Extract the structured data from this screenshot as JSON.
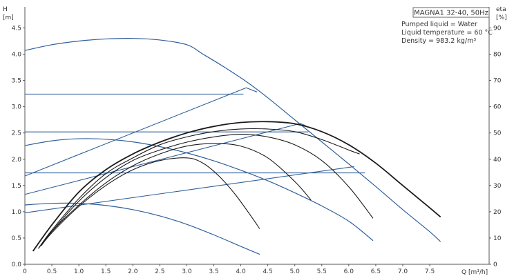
{
  "chart_data": {
    "type": "line",
    "title": "MAGNA1 32-40, 50Hz",
    "info_lines": [
      "Pumped liquid = Water",
      "Liquid temperature = 60 °C",
      "Density = 983.2 kg/m³"
    ],
    "xlabel": "Q [m³/h]",
    "ylabel_left": [
      "H",
      "[m]"
    ],
    "ylabel_right": [
      "eta",
      "[%]"
    ],
    "xlim": [
      0,
      8.6
    ],
    "ylim_left": [
      0,
      4.9
    ],
    "ylim_right": [
      0,
      98
    ],
    "x_ticks": [
      "0",
      "0.5",
      "1.0",
      "1.5",
      "2.0",
      "2.5",
      "3.0",
      "3.5",
      "4.0",
      "4.5",
      "5.0",
      "5.5",
      "6.0",
      "6.5",
      "7.0",
      "7.5"
    ],
    "y_ticks_left": [
      "0.0",
      "0.5",
      "1.0",
      "1.5",
      "2.0",
      "2.5",
      "3.0",
      "3.5",
      "4.0",
      "4.5"
    ],
    "y_ticks_right": [
      "0",
      "10",
      "20",
      "30",
      "40",
      "50",
      "60",
      "70",
      "80",
      "90"
    ],
    "grid": false,
    "colors": {
      "head": "#2f5f9a",
      "efficiency": "#1a1a1a",
      "axis": "#555555"
    },
    "head_curves": [
      {
        "x": [
          0,
          0.5,
          1.0,
          1.5,
          2.0,
          2.5,
          3.0,
          3.3,
          3.7,
          4.1,
          4.5,
          5.0,
          5.5,
          6.0,
          6.5,
          7.0,
          7.5,
          7.7
        ],
        "y": [
          4.07,
          4.18,
          4.25,
          4.29,
          4.3,
          4.27,
          4.18,
          4.0,
          3.75,
          3.48,
          3.17,
          2.75,
          2.33,
          1.91,
          1.48,
          1.04,
          0.62,
          0.43
        ]
      },
      {
        "x": [
          0,
          0.5,
          1.0,
          1.5,
          2.0,
          2.5,
          3.0,
          3.5,
          4.0,
          4.5,
          5.0,
          5.5,
          6.0,
          6.45
        ],
        "y": [
          2.26,
          2.35,
          2.39,
          2.38,
          2.33,
          2.24,
          2.12,
          1.97,
          1.79,
          1.59,
          1.36,
          1.11,
          0.82,
          0.45
        ]
      },
      {
        "x": [
          0,
          0.5,
          1.0,
          1.5,
          2.0,
          2.5,
          3.0,
          3.5,
          4.0,
          4.35
        ],
        "y": [
          1.13,
          1.16,
          1.16,
          1.12,
          1.04,
          0.92,
          0.76,
          0.56,
          0.34,
          0.19
        ]
      }
    ],
    "constant_head_lines": [
      {
        "y": 3.24,
        "x": [
          0,
          4.05
        ]
      },
      {
        "y": 2.52,
        "x": [
          0,
          5.25
        ]
      },
      {
        "y": 1.74,
        "x": [
          0,
          6.3
        ]
      }
    ],
    "rising_lines": [
      {
        "x": [
          0,
          4.1,
          4.3
        ],
        "y": [
          1.68,
          3.36,
          3.28
        ]
      },
      {
        "x": [
          0,
          5.1,
          5.2
        ],
        "y": [
          1.33,
          2.68,
          2.64
        ]
      },
      {
        "x": [
          0,
          6.1
        ],
        "y": [
          0.98,
          1.86
        ]
      }
    ],
    "efficiency_curves": [
      {
        "x": [
          0.15,
          0.5,
          1.0,
          1.5,
          2.0,
          2.5,
          3.0,
          3.5,
          4.0,
          4.5,
          5.0,
          5.5,
          6.0,
          6.5,
          7.0,
          7.5,
          7.7
        ],
        "y": [
          5,
          15,
          27.5,
          36,
          42,
          46.5,
          50,
          52.5,
          54,
          54.3,
          53.5,
          50.5,
          45.5,
          38.5,
          30,
          21.5,
          18
        ]
      },
      {
        "x": [
          0.25,
          0.5,
          1.0,
          1.5,
          2.0,
          2.5,
          3.0,
          3.5,
          4.0,
          4.5,
          5.0,
          5.5,
          6.0,
          6.2
        ],
        "y": [
          6,
          13,
          25,
          34.5,
          40.5,
          45.5,
          48.5,
          50.5,
          51.5,
          51.5,
          50.5,
          47.5,
          43.5,
          42
        ]
      },
      {
        "x": [
          0.25,
          0.5,
          1.0,
          1.5,
          2.0,
          2.5,
          3.0,
          3.5,
          4.0,
          4.5,
          5.0,
          5.5,
          6.0,
          6.45
        ],
        "y": [
          6,
          12.5,
          24,
          33,
          39.5,
          43.5,
          46.5,
          48.5,
          49.5,
          48.5,
          45.5,
          39.5,
          29.5,
          17.5
        ]
      },
      {
        "x": [
          0.3,
          0.5,
          1.0,
          1.5,
          2.0,
          2.5,
          3.0,
          3.5,
          4.0,
          4.5,
          5.0,
          5.3
        ],
        "y": [
          7,
          12.5,
          22.5,
          31,
          37.5,
          42,
          45,
          46,
          45,
          40.5,
          31.5,
          24.5
        ]
      },
      {
        "x": [
          0.3,
          0.5,
          1.0,
          1.5,
          2.0,
          2.5,
          3.0,
          3.3,
          3.6,
          3.9,
          4.2,
          4.35
        ],
        "y": [
          7,
          12,
          22,
          30,
          36,
          39.5,
          40.5,
          38.5,
          33.5,
          26.5,
          18,
          13.5
        ]
      }
    ]
  }
}
